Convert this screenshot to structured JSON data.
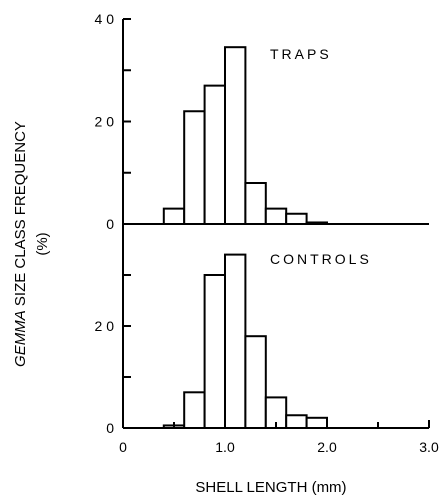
{
  "chart_data": {
    "type": "bar",
    "xlabel": "SHELL LENGTH (mm)",
    "ylabel_italic": "GEMMA",
    "ylabel_rest": " SIZE CLASS FREQUENCY",
    "ylabel_line2": "(%)",
    "xlim": [
      0,
      3.0
    ],
    "x_ticks": [
      "0",
      "1.0",
      "2.0",
      "3.0"
    ],
    "bin_width": 0.2,
    "panels": [
      {
        "label": "TRAPS",
        "ylim": [
          0,
          40
        ],
        "y_ticks": [
          "4 0",
          "2 0",
          "0"
        ],
        "bins": [
          {
            "x": 0.4,
            "value": 3
          },
          {
            "x": 0.6,
            "value": 22
          },
          {
            "x": 0.8,
            "value": 27
          },
          {
            "x": 1.0,
            "value": 34.5
          },
          {
            "x": 1.2,
            "value": 8
          },
          {
            "x": 1.4,
            "value": 3
          },
          {
            "x": 1.6,
            "value": 2
          },
          {
            "x": 1.8,
            "value": 0.3
          }
        ]
      },
      {
        "label": "CONTROLS",
        "ylim": [
          0,
          40
        ],
        "y_ticks": [
          "2 0",
          "0"
        ],
        "bins": [
          {
            "x": 0.4,
            "value": 0.5
          },
          {
            "x": 0.6,
            "value": 7
          },
          {
            "x": 0.8,
            "value": 30
          },
          {
            "x": 1.0,
            "value": 34
          },
          {
            "x": 1.2,
            "value": 18
          },
          {
            "x": 1.4,
            "value": 6
          },
          {
            "x": 1.6,
            "value": 2.5
          },
          {
            "x": 1.8,
            "value": 2
          }
        ]
      }
    ]
  }
}
